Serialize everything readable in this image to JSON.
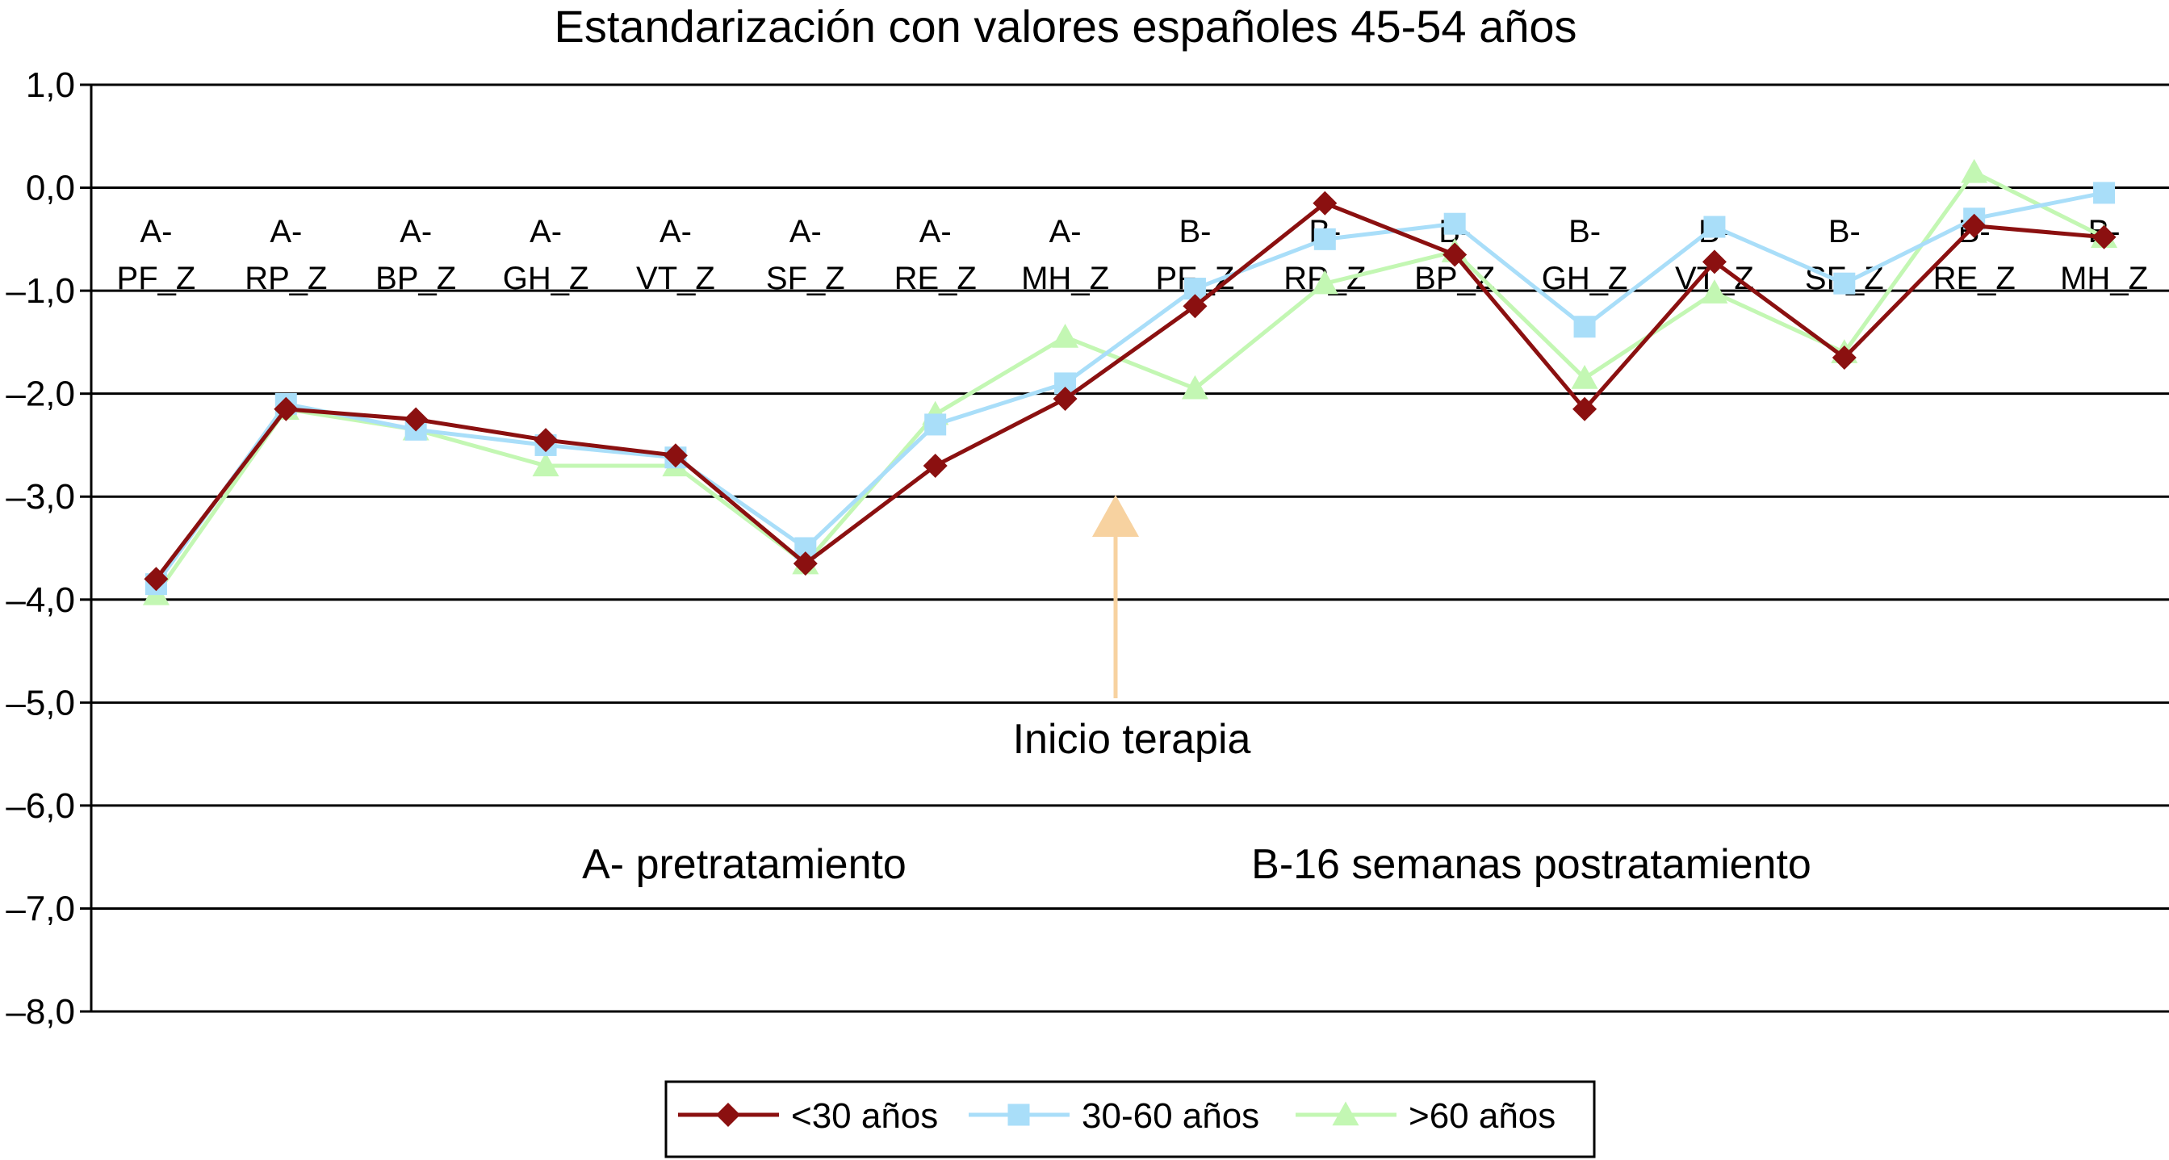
{
  "chart_data": {
    "type": "line",
    "title": "Estandarización con valores españoles 45-54 años",
    "xlabel": "",
    "ylabel": "",
    "ylim": [
      -8,
      1
    ],
    "yticks": [
      "1,0",
      "0,0",
      "–1,0",
      "–2,0",
      "–3,0",
      "–4,0",
      "–5,0",
      "–6,0",
      "–7,0",
      "–8,0"
    ],
    "grid": true,
    "legend_position": "bottom",
    "categories": [
      [
        "A-",
        "PF_Z"
      ],
      [
        "A-",
        "RP_Z"
      ],
      [
        "A-",
        "BP_Z"
      ],
      [
        "A-",
        "GH_Z"
      ],
      [
        "A-",
        "VT_Z"
      ],
      [
        "A-",
        "SF_Z"
      ],
      [
        "A-",
        "RE_Z"
      ],
      [
        "A-",
        "MH_Z"
      ],
      [
        "B-",
        "PF_Z"
      ],
      [
        "B-",
        "RP_Z"
      ],
      [
        "B-",
        "BP_Z"
      ],
      [
        "B-",
        "GH_Z"
      ],
      [
        "B-",
        "VT_Z"
      ],
      [
        "B-",
        "SF_Z"
      ],
      [
        "B-",
        "RE_Z"
      ],
      [
        "B-",
        "MH_Z"
      ]
    ],
    "series": [
      {
        "name": "<30 años",
        "color": "#8b1010",
        "marker": "diamond",
        "values": [
          -3.8,
          -2.15,
          -2.25,
          -2.45,
          -2.6,
          -3.65,
          -2.7,
          -2.05,
          -1.15,
          -0.15,
          -0.65,
          -2.15,
          -0.72,
          -1.65,
          -0.37,
          -0.48
        ]
      },
      {
        "name": "30-60 años",
        "color": "#a9def9",
        "marker": "square",
        "values": [
          -3.85,
          -2.1,
          -2.35,
          -2.5,
          -2.62,
          -3.5,
          -2.3,
          -1.9,
          -0.98,
          -0.5,
          -0.35,
          -1.35,
          -0.38,
          -0.93,
          -0.3,
          -0.05
        ]
      },
      {
        "name": ">60 años",
        "color": "#c3f7b3",
        "marker": "triangle",
        "values": [
          -3.95,
          -2.15,
          -2.35,
          -2.7,
          -2.7,
          -3.65,
          -2.2,
          -1.45,
          -1.95,
          -0.93,
          -0.62,
          -1.85,
          -1.02,
          -1.6,
          0.15,
          -0.48
        ]
      }
    ],
    "annotations": {
      "arrow_label": "Inicio terapia",
      "phase_a": "A- pretratamiento",
      "phase_b": "B-16 semanas postratamiento"
    }
  }
}
